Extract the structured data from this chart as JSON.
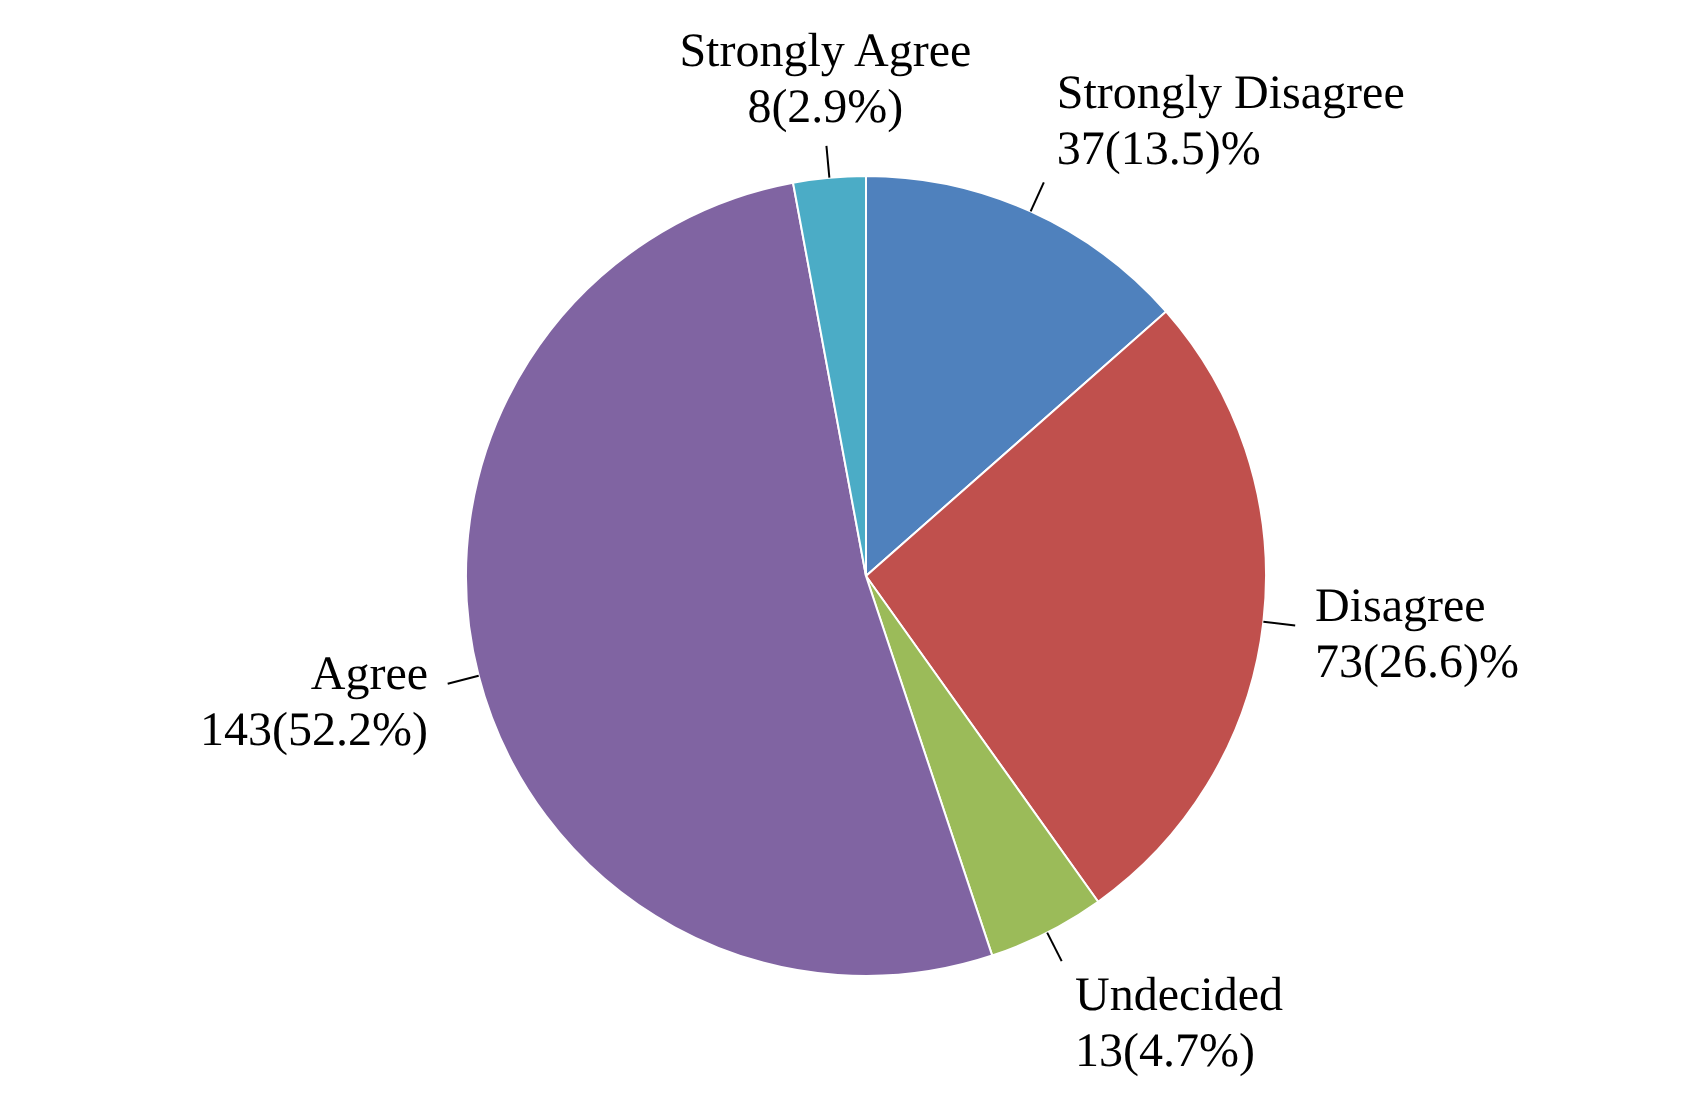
{
  "chart_data": {
    "type": "pie",
    "categories": [
      "Strongly Disagree",
      "Disagree",
      "Undecided",
      "Agree",
      "Strongly Agree"
    ],
    "values": [
      37,
      73,
      13,
      143,
      8
    ],
    "value_labels": [
      "37(13.5)%",
      "73(26.6)%",
      "13(4.7%)",
      "143(52.2%)",
      "8(2.9%)"
    ],
    "colors": [
      "#4f81bd",
      "#c0504d",
      "#9bbb59",
      "#8064a2",
      "#4bacc6"
    ]
  }
}
